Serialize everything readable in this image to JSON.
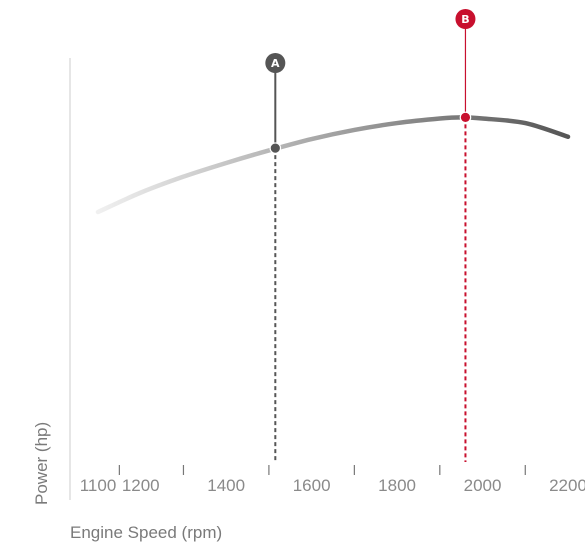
{
  "chart_data": {
    "type": "line",
    "title": "",
    "xlabel": "Engine Speed (rpm)",
    "ylabel": "Power (hp)",
    "xlim": [
      1100,
      2200
    ],
    "x_ticks": [
      1100,
      1200,
      1400,
      1600,
      1800,
      2000,
      2200
    ],
    "tick_marks": [
      1150,
      1300,
      1500,
      1700,
      1900,
      2100
    ],
    "series": [
      {
        "x": [
          1100,
          1200,
          1300,
          1400,
          1500,
          1600,
          1700,
          1800,
          1900,
          1950,
          2000,
          2100,
          2200
        ],
        "y": [
          0.0,
          0.17,
          0.31,
          0.43,
          0.54,
          0.64,
          0.72,
          0.78,
          0.82,
          0.83,
          0.82,
          0.78,
          0.66
        ]
      }
    ],
    "markers": [
      {
        "label": "A",
        "x": 1515,
        "y": 0.56,
        "color": "#555555"
      },
      {
        "label": "B",
        "x": 1960,
        "y": 0.83,
        "color": "#c8102e"
      }
    ],
    "grid": false,
    "colors": {
      "curve_light": "#e4e4e4",
      "curve_dark": "#555555",
      "marker_a": "#555555",
      "marker_b": "#c8102e",
      "axis": "#cccccc",
      "tick": "#777777"
    }
  }
}
